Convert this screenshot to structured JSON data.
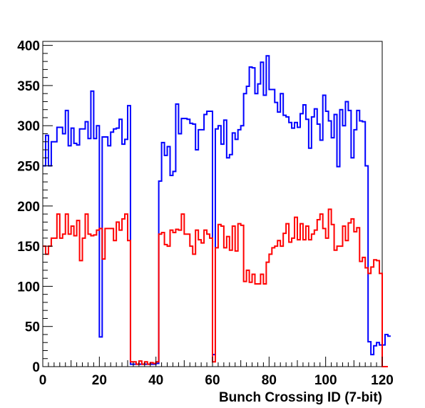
{
  "chart_data": {
    "type": "histogram",
    "title": "",
    "xlabel": "Bunch Crossing ID (7-bit)",
    "ylabel": "",
    "xlim": [
      0,
      120
    ],
    "ylim": [
      0,
      405
    ],
    "x_ticks": [
      "0",
      "20",
      "40",
      "60",
      "80",
      "100",
      "120"
    ],
    "y_ticks": [
      "0",
      "50",
      "100",
      "150",
      "200",
      "250",
      "300",
      "350",
      "400"
    ],
    "grid": false,
    "legend": "none",
    "bin_width": 1,
    "series": [
      {
        "color": "#0000ff",
        "values": [
          250,
          288,
          250,
          280,
          280,
          298,
          298,
          290,
          319,
          275,
          297,
          278,
          276,
          296,
          296,
          305,
          284,
          343,
          284,
          300,
          37,
          286,
          286,
          275,
          292,
          296,
          297,
          308,
          277,
          283,
          325,
          3,
          3,
          3,
          3,
          3,
          3,
          3,
          3,
          3,
          4,
          231,
          279,
          263,
          274,
          238,
          243,
          327,
          290,
          309,
          309,
          308,
          303,
          302,
          270,
          295,
          295,
          314,
          318,
          318,
          15,
          296,
          300,
          277,
          307,
          260,
          264,
          291,
          283,
          295,
          300,
          340,
          349,
          373,
          372,
          340,
          352,
          379,
          338,
          387,
          345,
          345,
          329,
          317,
          340,
          313,
          311,
          304,
          297,
          304,
          298,
          315,
          326,
          308,
          272,
          311,
          321,
          302,
          282,
          338,
          318,
          306,
          285,
          314,
          249,
          320,
          300,
          330,
          319,
          260,
          295,
          319,
          306,
          305,
          250,
          31,
          15,
          26,
          30,
          27,
          27,
          40,
          38
        ]
      },
      {
        "color": "#ff0000",
        "values": [
          150,
          140,
          150,
          160,
          160,
          190,
          160,
          165,
          190,
          165,
          175,
          163,
          182,
          132,
          160,
          190,
          165,
          163,
          164,
          170,
          172,
          134,
          172,
          172,
          172,
          157,
          180,
          170,
          184,
          190,
          157,
          6,
          6,
          3,
          7,
          3,
          6,
          3,
          5,
          4,
          6,
          165,
          167,
          152,
          150,
          170,
          167,
          171,
          170,
          190,
          165,
          165,
          150,
          140,
          170,
          158,
          154,
          170,
          165,
          160,
          6,
          148,
          177,
          175,
          148,
          162,
          145,
          175,
          144,
          178,
          176,
          106,
          120,
          105,
          115,
          103,
          103,
          115,
          103,
          130,
          140,
          148,
          150,
          157,
          150,
          166,
          178,
          155,
          160,
          186,
          158,
          178,
          158,
          175,
          158,
          165,
          170,
          183,
          190,
          172,
          160,
          196,
          177,
          145,
          150,
          150,
          175,
          157,
          179,
          184,
          168,
          173,
          131,
          136,
          123,
          116,
          124,
          133,
          132,
          116,
          0,
          0
        ]
      }
    ]
  }
}
